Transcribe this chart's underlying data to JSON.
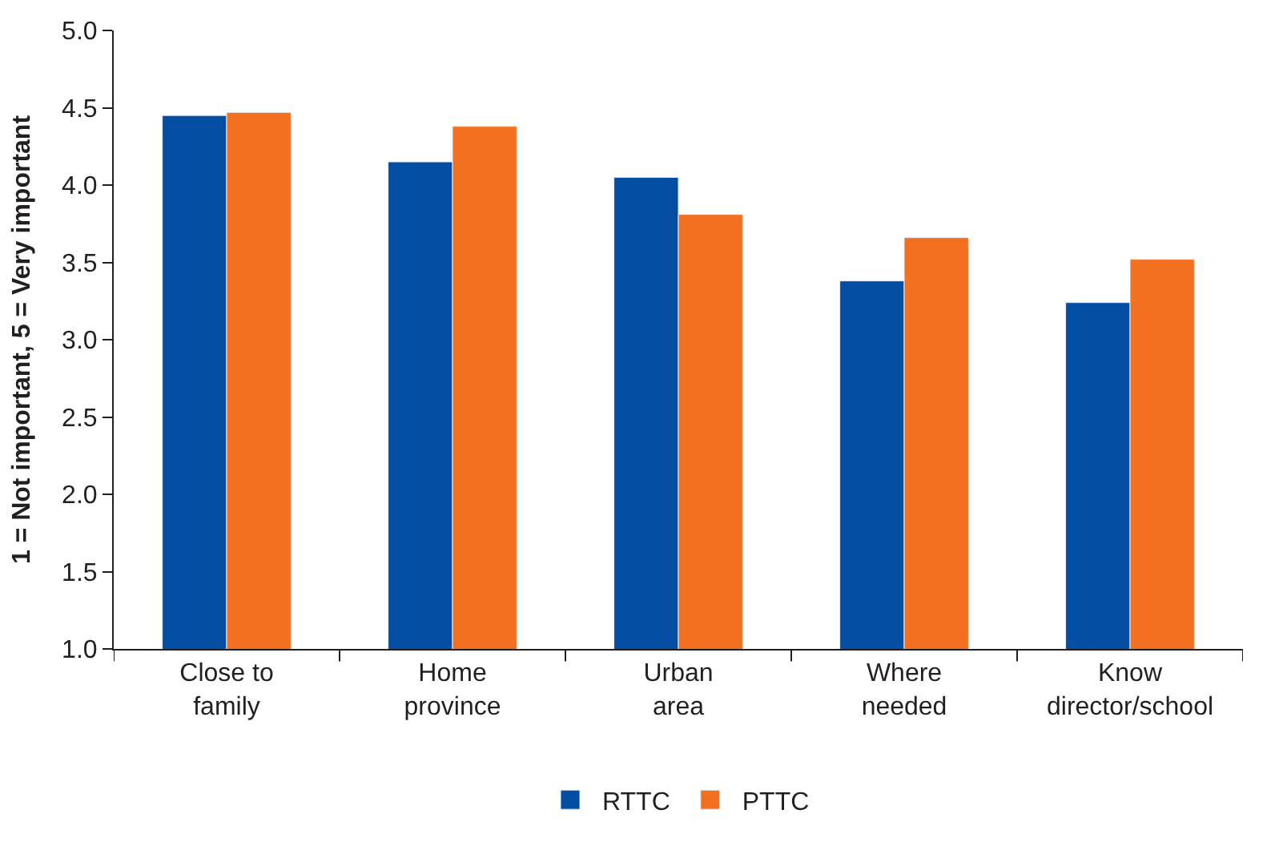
{
  "chart_data": {
    "type": "bar",
    "ylabel": "1 = Not important, 5 = Very important",
    "categories": [
      "Close to\nfamily",
      "Home\nprovince",
      "Urban\narea",
      "Where\nneeded",
      "Know\ndirector/school"
    ],
    "series": [
      {
        "name": "RTTC",
        "color": "#034ea2",
        "values": [
          4.45,
          4.15,
          4.05,
          3.38,
          3.24
        ]
      },
      {
        "name": "PTTC",
        "color": "#f37021",
        "values": [
          4.47,
          4.38,
          3.81,
          3.66,
          3.52
        ]
      }
    ],
    "ylim": [
      1.0,
      5.0
    ],
    "yticks": [
      {
        "value": 1,
        "label": "1.0"
      },
      {
        "value": 1.5,
        "label": "1.5"
      },
      {
        "value": 2,
        "label": "2.0"
      },
      {
        "value": 2.5,
        "label": "2.5"
      },
      {
        "value": 3,
        "label": "3.0"
      },
      {
        "value": 3.5,
        "label": "3.5"
      },
      {
        "value": 4,
        "label": "4.0"
      },
      {
        "value": 4.5,
        "label": "4.5"
      },
      {
        "value": 5,
        "label": "5.0"
      }
    ],
    "legend": "bottom"
  }
}
